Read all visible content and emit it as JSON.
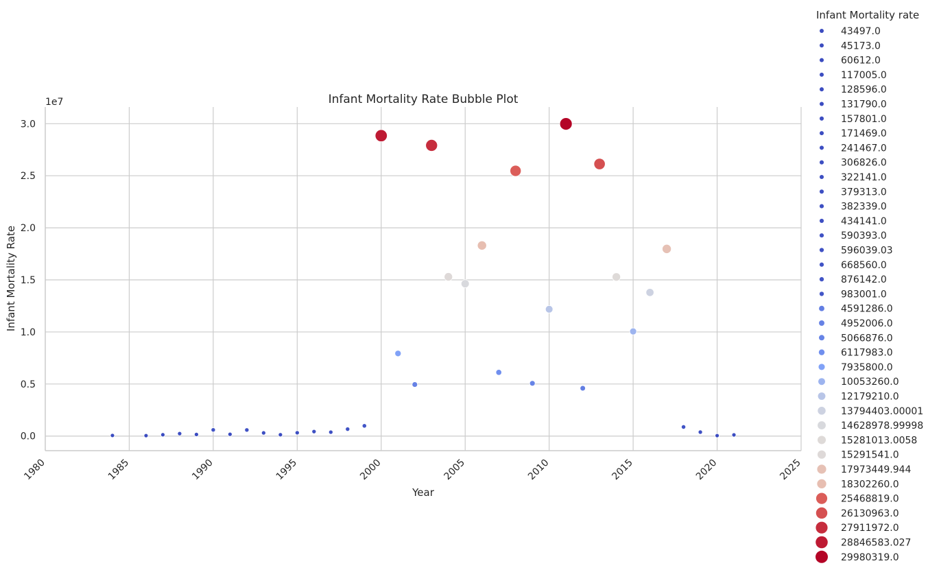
{
  "chart_data": {
    "type": "scatter",
    "title": "Infant Mortality Rate Bubble Plot",
    "xlabel": "Year",
    "ylabel": "Infant Mortality Rate",
    "y_offset_label": "1e7",
    "xlim": [
      1980,
      2025
    ],
    "ylim": [
      -1400000,
      31600000
    ],
    "x_ticks": [
      1980,
      1985,
      1990,
      1995,
      2000,
      2005,
      2010,
      2015,
      2020,
      2025
    ],
    "x_tick_labels": [
      "1980",
      "1985",
      "1990",
      "1995",
      "2000",
      "2005",
      "2010",
      "2015",
      "2020",
      "2025"
    ],
    "y_ticks": [
      0,
      5000000,
      10000000,
      15000000,
      20000000,
      25000000,
      30000000
    ],
    "y_tick_labels": [
      "0.0",
      "0.5",
      "1.0",
      "1.5",
      "2.0",
      "2.5",
      "3.0"
    ],
    "grid": true,
    "colormap": "coolwarm",
    "legend_title": "Infant Mortality rate",
    "legend_placement": "outside right",
    "legend_entries": [
      "43497.0",
      "45173.0",
      "60612.0",
      "117005.0",
      "128596.0",
      "131790.0",
      "157801.0",
      "171469.0",
      "241467.0",
      "306826.0",
      "322141.0",
      "379313.0",
      "382339.0",
      "434141.0",
      "590393.0",
      "596039.03",
      "668560.0",
      "876142.0",
      "983001.0",
      "4591286.0",
      "4952006.0",
      "5066876.0",
      "6117983.0",
      "7935800.0",
      "10053260.0",
      "12179210.0",
      "13794403.00001",
      "14628978.99998",
      "15281013.0058",
      "15291541.0",
      "17973449.944",
      "18302260.0",
      "25468819.0",
      "26130963.0",
      "27911972.0",
      "28846583.027",
      "29980319.0"
    ],
    "points": [
      {
        "x": 1984,
        "y": 60612
      },
      {
        "x": 1986,
        "y": 43497
      },
      {
        "x": 1987,
        "y": 128596
      },
      {
        "x": 1988,
        "y": 241467
      },
      {
        "x": 1989,
        "y": 157801
      },
      {
        "x": 1990,
        "y": 596039.03
      },
      {
        "x": 1991,
        "y": 171469
      },
      {
        "x": 1992,
        "y": 590393
      },
      {
        "x": 1993,
        "y": 306826
      },
      {
        "x": 1994,
        "y": 131790
      },
      {
        "x": 1995,
        "y": 322141
      },
      {
        "x": 1996,
        "y": 434141
      },
      {
        "x": 1997,
        "y": 379313
      },
      {
        "x": 1998,
        "y": 668560
      },
      {
        "x": 1999,
        "y": 983001
      },
      {
        "x": 2000,
        "y": 28846583.027
      },
      {
        "x": 2001,
        "y": 7935800
      },
      {
        "x": 2002,
        "y": 4952006
      },
      {
        "x": 2003,
        "y": 27911972
      },
      {
        "x": 2004,
        "y": 15291541
      },
      {
        "x": 2005,
        "y": 14628978.99998
      },
      {
        "x": 2006,
        "y": 18302260
      },
      {
        "x": 2007,
        "y": 6117983
      },
      {
        "x": 2008,
        "y": 25468819
      },
      {
        "x": 2009,
        "y": 5066876
      },
      {
        "x": 2010,
        "y": 12179210
      },
      {
        "x": 2011,
        "y": 29980319
      },
      {
        "x": 2012,
        "y": 4591286
      },
      {
        "x": 2013,
        "y": 26130963
      },
      {
        "x": 2014,
        "y": 15281013.0058
      },
      {
        "x": 2015,
        "y": 10053260
      },
      {
        "x": 2016,
        "y": 13794403.00001
      },
      {
        "x": 2017,
        "y": 17973449.944
      },
      {
        "x": 2018,
        "y": 876142
      },
      {
        "x": 2019,
        "y": 382339
      },
      {
        "x": 2020,
        "y": 45173
      },
      {
        "x": 2021,
        "y": 117005
      }
    ]
  }
}
